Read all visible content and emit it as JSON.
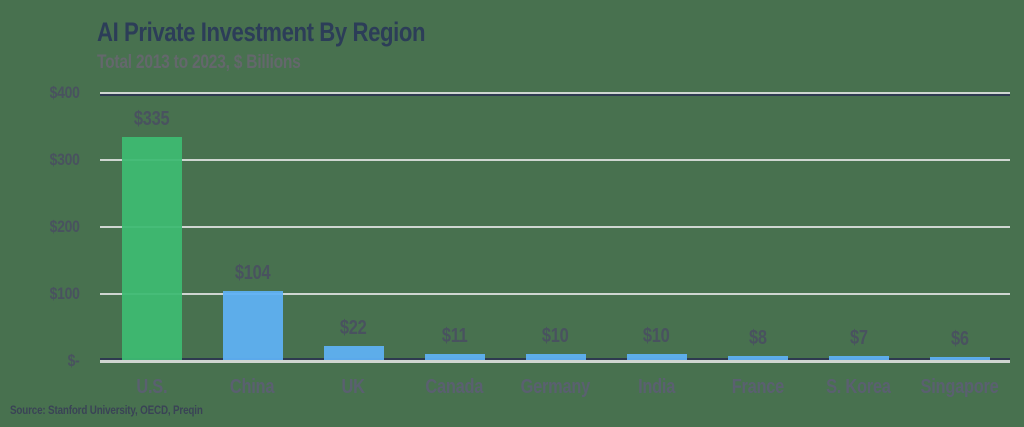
{
  "title": "AI Private Investment By Region",
  "subtitle": "Total 2013 to 2023, $ Billions",
  "source": "Source: Stanford University, OECD, Preqin",
  "colors": {
    "background": "#48714F",
    "title_text": "#2C3D58",
    "subtitle_text": "#64676C",
    "value_label_text": "#49525F",
    "category_label_text": "#5A6070",
    "source_text": "#3A4356",
    "gridline_light": "#CFD6D1",
    "axis_dark": "#2E3A50",
    "bar_us_green": "#3EBA72",
    "bar_blue": "#5FB0F4"
  },
  "chart_data": {
    "type": "bar",
    "title": "AI Private Investment By Region",
    "subtitle": "Total 2013 to 2023, $ Billions",
    "categories": [
      "U.S.",
      "China",
      "UK",
      "Canada",
      "Germany",
      "India",
      "France",
      "S. Korea",
      "Singapore"
    ],
    "values": [
      335,
      104,
      22,
      11,
      10,
      10,
      8,
      7,
      6
    ],
    "value_labels": [
      "$335",
      "$104",
      "$22",
      "$11",
      "$10",
      "$10",
      "$8",
      "$7",
      "$6"
    ],
    "bar_colors": [
      "#3EBA72",
      "#5FB0F4",
      "#5FB0F4",
      "#5FB0F4",
      "#5FB0F4",
      "#5FB0F4",
      "#5FB0F4",
      "#5FB0F4",
      "#5FB0F4"
    ],
    "xlabel": "",
    "ylabel": "$ Billions",
    "ylim": [
      0,
      400
    ],
    "yticks": [
      0,
      100,
      200,
      300,
      400
    ],
    "ytick_labels": [
      "$-",
      "$100",
      "$200",
      "$300",
      "$400"
    ],
    "grid": "horizontal",
    "legend": "none",
    "source_note": "Source: Stanford University, OECD, Preqin"
  }
}
